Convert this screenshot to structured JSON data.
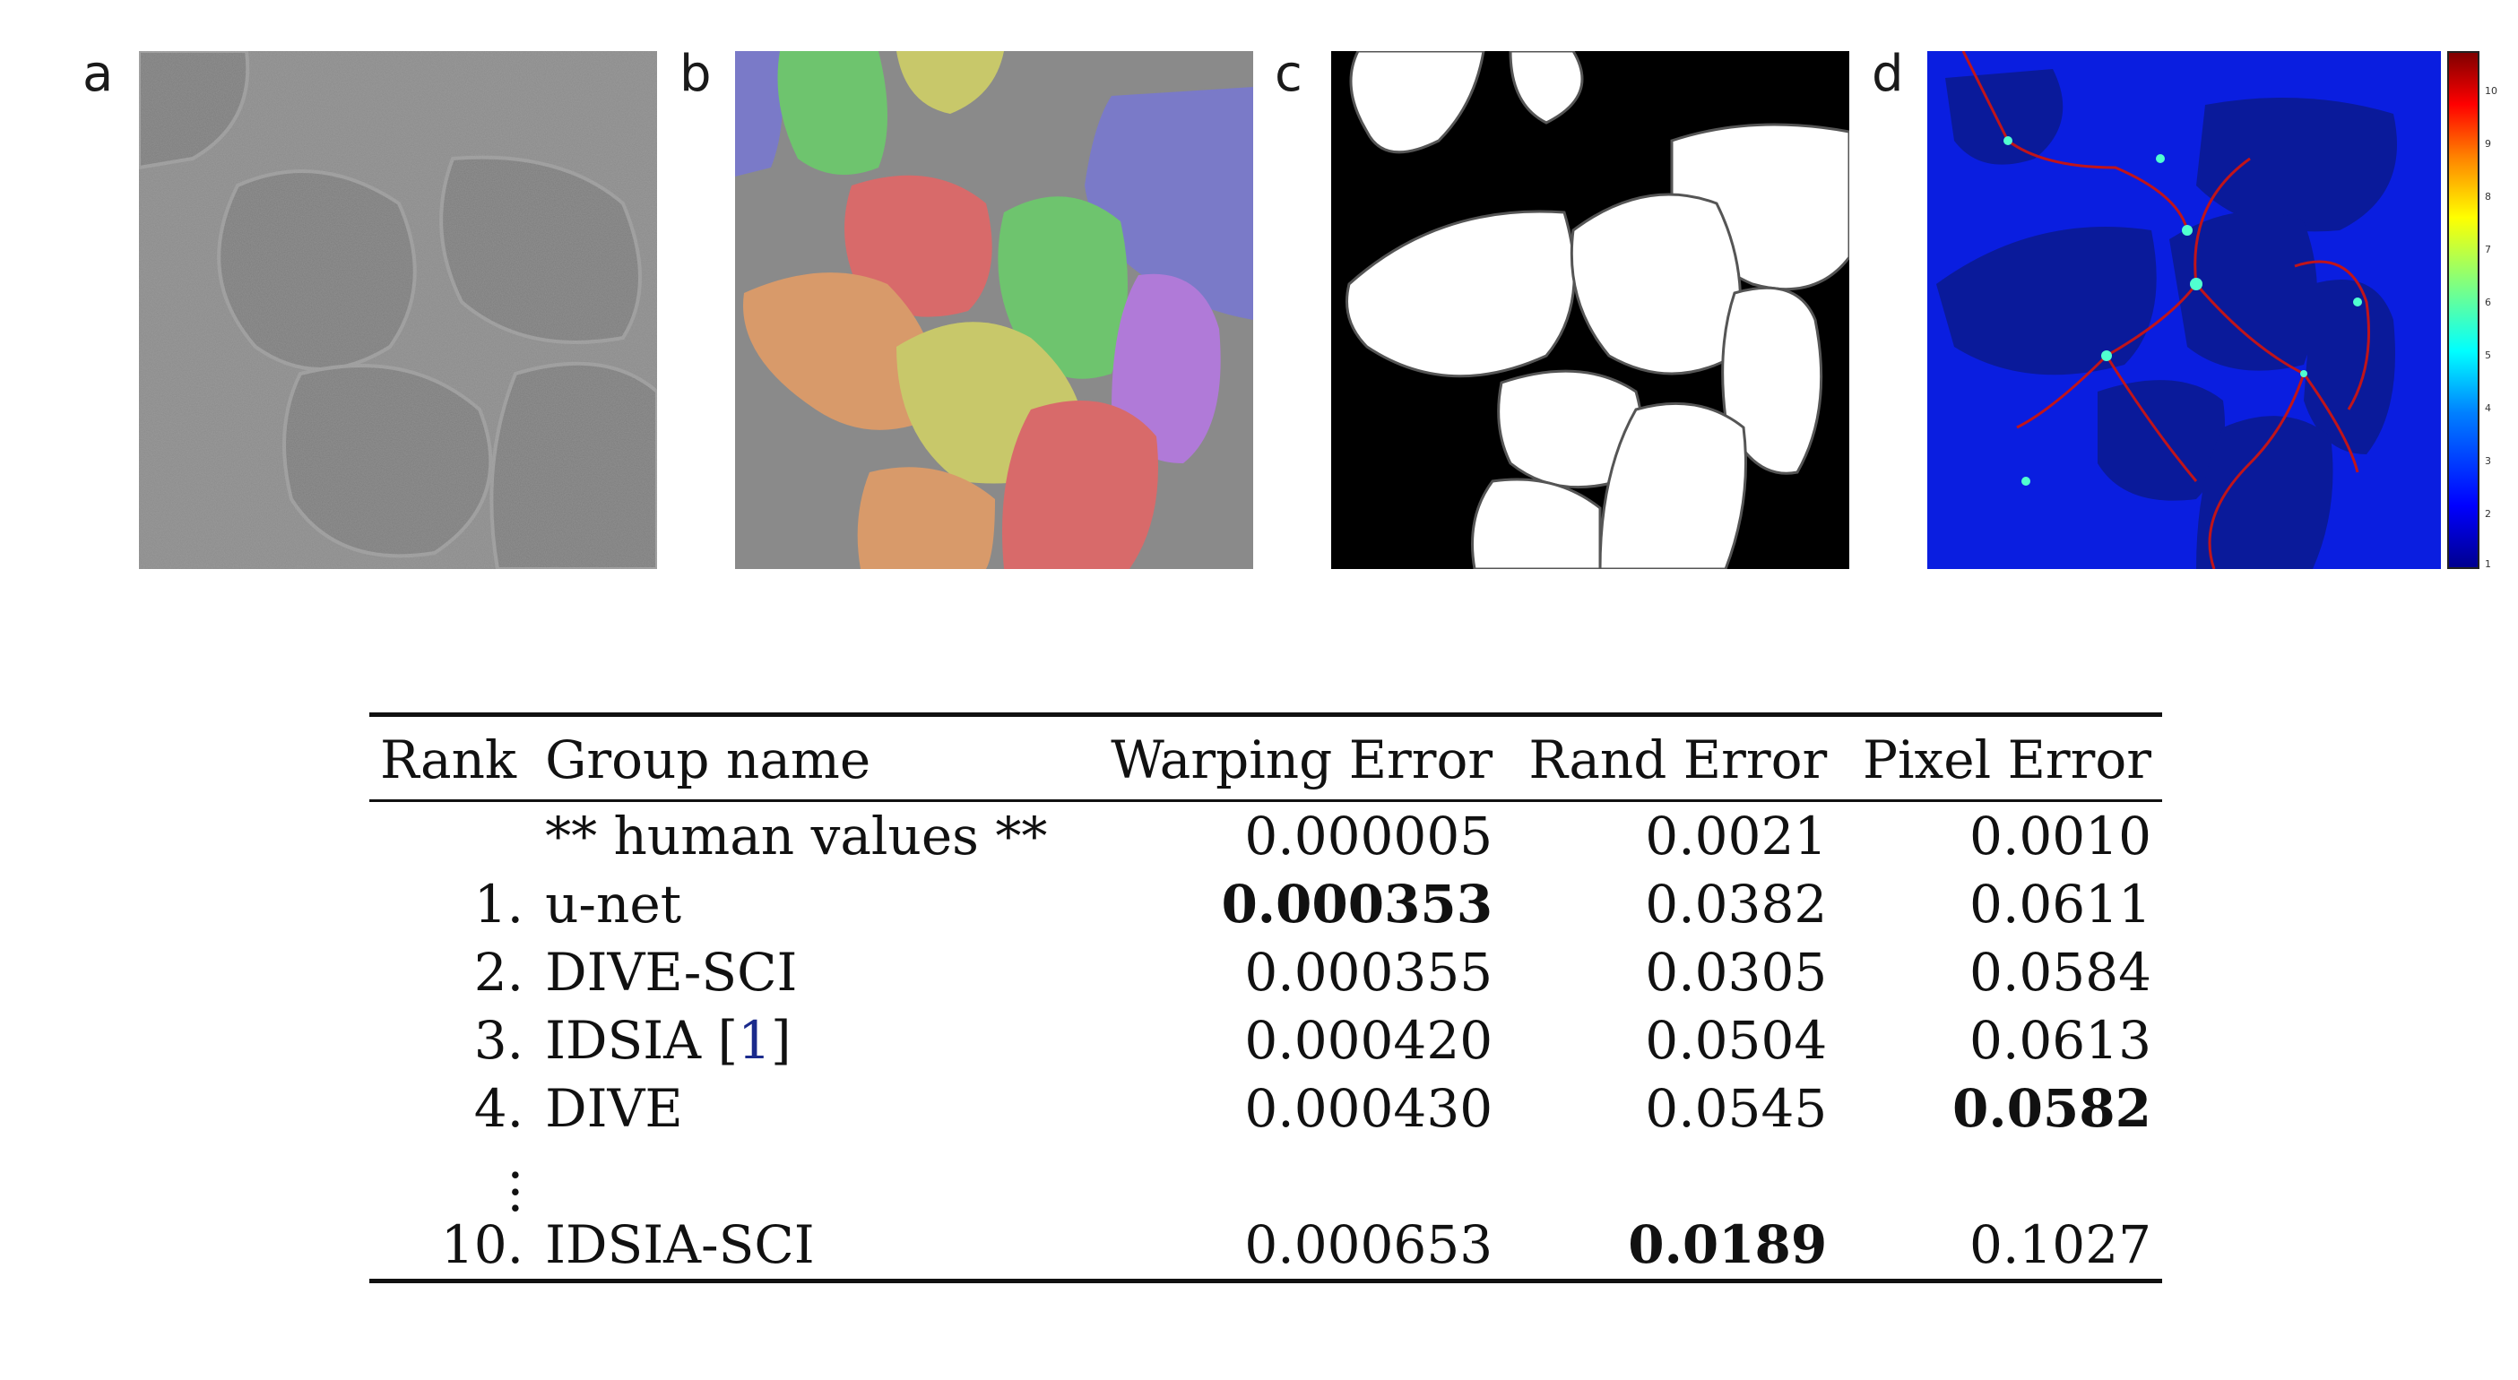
{
  "panels": [
    {
      "label": "a"
    },
    {
      "label": "b"
    },
    {
      "label": "c"
    },
    {
      "label": "d"
    }
  ],
  "colorbar": {
    "ticks": [
      "10",
      "9",
      "8",
      "7",
      "6",
      "5",
      "4",
      "3",
      "2",
      "1"
    ]
  },
  "table": {
    "headers": [
      "Rank",
      "Group name",
      "Warping Error",
      "Rand Error",
      "Pixel Error"
    ],
    "rows": [
      {
        "rank": "",
        "name": "** human values **",
        "warping": "0.000005",
        "rand": "0.0021",
        "pixel": "0.0010"
      },
      {
        "rank": "1.",
        "name": "u-net",
        "warping": "0.000353",
        "rand": "0.0382",
        "pixel": "0.0611"
      },
      {
        "rank": "2.",
        "name": "DIVE-SCI",
        "warping": "0.000355",
        "rand": "0.0305",
        "pixel": "0.0584"
      },
      {
        "rank": "3.",
        "name": "IDSIA",
        "cite_open": "[",
        "cite": "1",
        "cite_close": "]",
        "warping": "0.000420",
        "rand": "0.0504",
        "pixel": "0.0613"
      },
      {
        "rank": "4.",
        "name": "DIVE",
        "warping": "0.000430",
        "rand": "0.0545",
        "pixel": "0.0582"
      },
      {
        "rank": "10.",
        "name": "IDSIA-SCI",
        "warping": "0.000653",
        "rand": "0.0189",
        "pixel": "0.1027"
      }
    ],
    "ellipsis": ":",
    "ellipsis_dot": ".",
    "bold_cells": [
      "rows.1.warping",
      "rows.4.pixel",
      "rows.5.rand"
    ]
  }
}
